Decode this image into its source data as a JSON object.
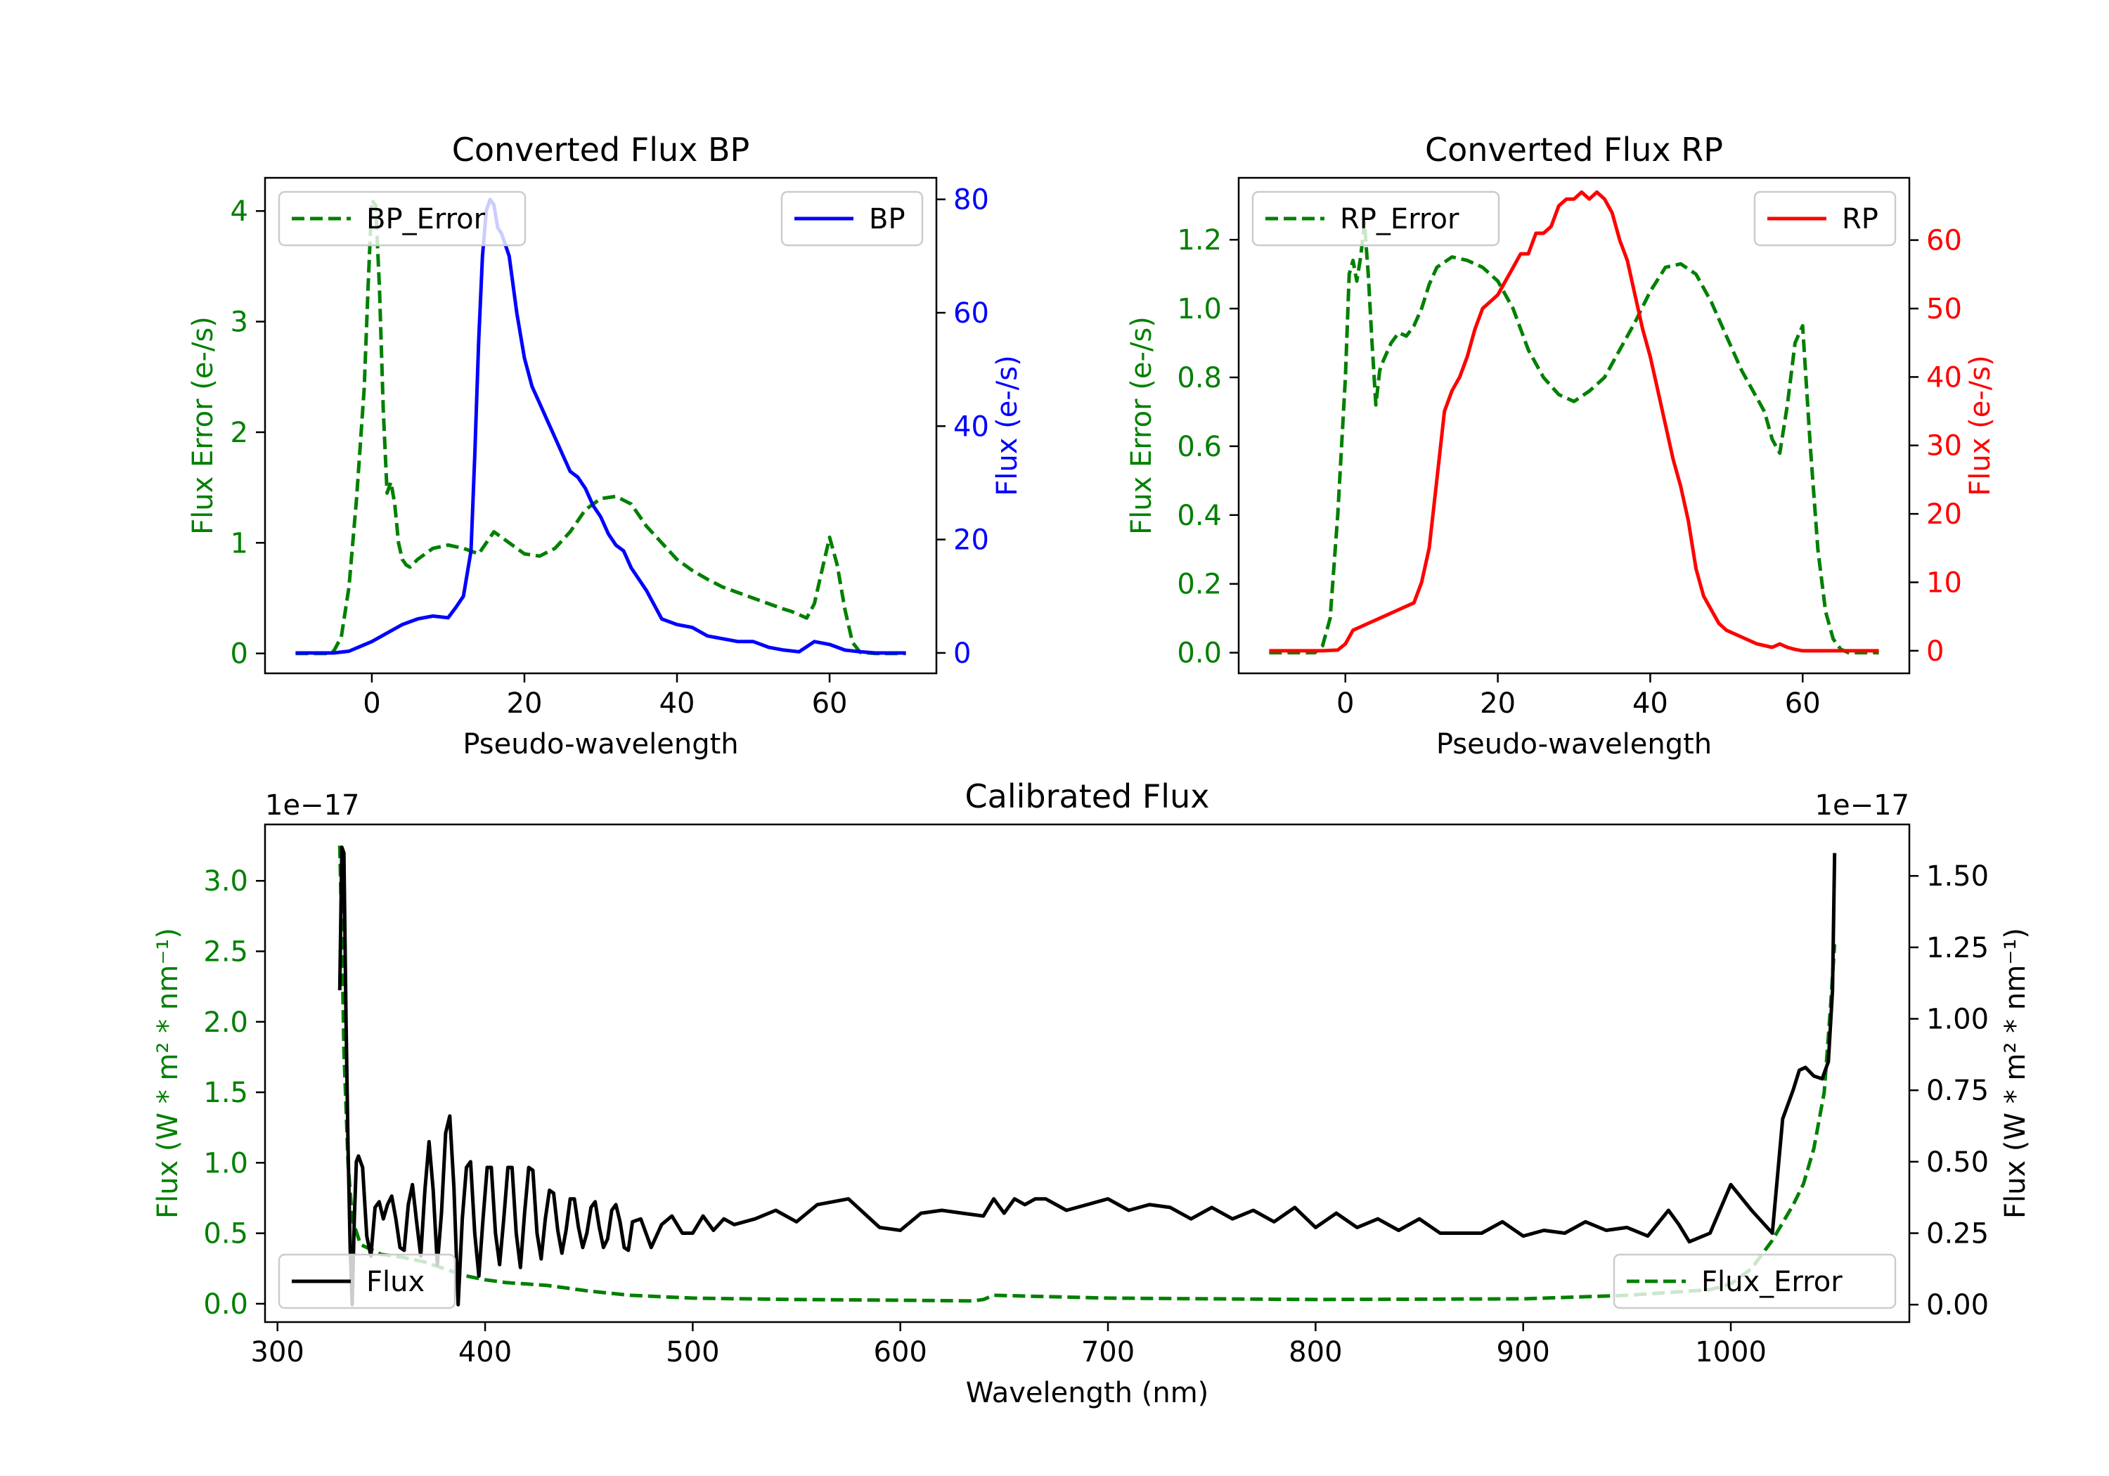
{
  "chart_data": [
    {
      "type": "line",
      "id": "bp",
      "title": "Converted Flux BP",
      "xlabel": "Pseudo-wavelength",
      "ylabel_left": "Flux Error (e-/s)",
      "ylabel_right": "Flux (e-/s)",
      "xlim": [
        -14,
        74
      ],
      "ylim_left": [
        -0.18,
        4.3
      ],
      "ylim_right": [
        -3.6,
        83.8
      ],
      "xticks": [
        0,
        20,
        40,
        60
      ],
      "xtick_labels": [
        "0",
        "20",
        "40",
        "60"
      ],
      "yticks_left": [
        0,
        1,
        2,
        3,
        4
      ],
      "ytick_labels_left": [
        "0",
        "1",
        "2",
        "3",
        "4"
      ],
      "yticks_right": [
        0,
        20,
        40,
        60,
        80
      ],
      "ytick_labels_right": [
        "0",
        "20",
        "40",
        "60",
        "80"
      ],
      "colors": {
        "error": "#008000",
        "flux": "#0000ff",
        "left_axis": "#008000",
        "right_axis": "#0000ff"
      },
      "legend_left": "BP_Error",
      "legend_right": "BP",
      "series": [
        {
          "name": "BP_Error",
          "axis": "left",
          "style": "dashed",
          "x": [
            -10,
            -6,
            -5,
            -4,
            -3,
            -2,
            -1,
            -0.5,
            0,
            0.5,
            1,
            1.5,
            2,
            2.5,
            3,
            3.5,
            4,
            4.5,
            5,
            6,
            8,
            10,
            12,
            14,
            16,
            18,
            20,
            22,
            24,
            26,
            28,
            30,
            32,
            34,
            36,
            38,
            40,
            42,
            44,
            46,
            48,
            50,
            52,
            54,
            55,
            56,
            57,
            58,
            59,
            60,
            61,
            62,
            63,
            64,
            66,
            70
          ],
          "y": [
            0,
            0,
            0.02,
            0.15,
            0.6,
            1.4,
            2.4,
            3.3,
            4.1,
            4.05,
            3.3,
            2.2,
            1.45,
            1.55,
            1.35,
            1.0,
            0.85,
            0.8,
            0.78,
            0.85,
            0.95,
            0.98,
            0.95,
            0.9,
            1.1,
            1.0,
            0.9,
            0.88,
            0.95,
            1.1,
            1.3,
            1.4,
            1.42,
            1.35,
            1.15,
            1.0,
            0.85,
            0.75,
            0.67,
            0.6,
            0.55,
            0.5,
            0.45,
            0.4,
            0.38,
            0.35,
            0.32,
            0.45,
            0.75,
            1.05,
            0.8,
            0.4,
            0.1,
            0.01,
            0,
            0
          ]
        },
        {
          "name": "BP",
          "axis": "right",
          "style": "solid",
          "x": [
            -10,
            -5,
            -3,
            0,
            2,
            4,
            6,
            8,
            10,
            11,
            12,
            13,
            13.5,
            14,
            14.5,
            15,
            15.5,
            16,
            16.5,
            17,
            18,
            19,
            20,
            21,
            22,
            23,
            24,
            25,
            26,
            27,
            28,
            29,
            30,
            31,
            32,
            33,
            34,
            35,
            36,
            38,
            40,
            42,
            44,
            46,
            48,
            50,
            52,
            54,
            56,
            58,
            60,
            62,
            64,
            66,
            70
          ],
          "y": [
            0,
            0,
            0.3,
            2,
            3.5,
            5,
            6,
            6.5,
            6.2,
            8,
            10,
            18,
            35,
            55,
            70,
            78,
            80,
            79,
            75,
            74,
            70,
            60,
            52,
            47,
            44,
            41,
            38,
            35,
            32,
            31,
            29,
            26,
            24,
            21,
            19,
            18,
            15,
            13,
            11,
            6,
            5,
            4.5,
            3,
            2.5,
            2,
            2,
            1,
            0.5,
            0.2,
            2,
            1.5,
            0.5,
            0.2,
            0,
            0
          ]
        }
      ]
    },
    {
      "type": "line",
      "id": "rp",
      "title": "Converted Flux RP",
      "xlabel": "Pseudo-wavelength",
      "ylabel_left": "Flux Error (e-/s)",
      "ylabel_right": "Flux (e-/s)",
      "xlim": [
        -14,
        74
      ],
      "ylim_left": [
        -0.06,
        1.38
      ],
      "ylim_right": [
        -3.3,
        69.1
      ],
      "xticks": [
        0,
        20,
        40,
        60
      ],
      "xtick_labels": [
        "0",
        "20",
        "40",
        "60"
      ],
      "yticks_left": [
        0,
        0.2,
        0.4,
        0.6,
        0.8,
        1.0,
        1.2
      ],
      "ytick_labels_left": [
        "0.0",
        "0.2",
        "0.4",
        "0.6",
        "0.8",
        "1.0",
        "1.2"
      ],
      "yticks_right": [
        0,
        10,
        20,
        30,
        40,
        50,
        60
      ],
      "ytick_labels_right": [
        "0",
        "10",
        "20",
        "30",
        "40",
        "50",
        "60"
      ],
      "colors": {
        "error": "#008000",
        "flux": "#ff0000",
        "left_axis": "#008000",
        "right_axis": "#ff0000"
      },
      "legend_left": "RP_Error",
      "legend_right": "RP",
      "series": [
        {
          "name": "RP_Error",
          "axis": "left",
          "style": "dashed",
          "x": [
            -10,
            -4,
            -3,
            -2,
            -1,
            0,
            0.5,
            1,
            1.5,
            2,
            2.5,
            3,
            3.5,
            4,
            4.5,
            5,
            6,
            7,
            8,
            9,
            10,
            11,
            12,
            14,
            16,
            18,
            20,
            22,
            24,
            26,
            28,
            30,
            32,
            34,
            36,
            38,
            40,
            42,
            44,
            46,
            48,
            50,
            52,
            53,
            54,
            55,
            56,
            57,
            58,
            59,
            60,
            61,
            62,
            63,
            64,
            65,
            66,
            70
          ],
          "y": [
            0,
            0,
            0.02,
            0.1,
            0.4,
            0.8,
            1.1,
            1.14,
            1.08,
            1.15,
            1.25,
            1.1,
            0.9,
            0.72,
            0.82,
            0.85,
            0.9,
            0.93,
            0.92,
            0.95,
            1.0,
            1.07,
            1.12,
            1.15,
            1.14,
            1.12,
            1.08,
            1.0,
            0.88,
            0.8,
            0.75,
            0.73,
            0.76,
            0.8,
            0.88,
            0.96,
            1.05,
            1.12,
            1.13,
            1.1,
            1.02,
            0.92,
            0.82,
            0.78,
            0.74,
            0.7,
            0.62,
            0.58,
            0.72,
            0.9,
            0.95,
            0.6,
            0.3,
            0.12,
            0.04,
            0.01,
            0,
            0
          ]
        },
        {
          "name": "RP",
          "axis": "right",
          "style": "solid",
          "x": [
            -10,
            -3,
            -1,
            0,
            1,
            3,
            5,
            7,
            9,
            10,
            11,
            12,
            13,
            14,
            15,
            16,
            17,
            18,
            19,
            20,
            21,
            22,
            23,
            24,
            25,
            26,
            27,
            28,
            29,
            30,
            31,
            32,
            33,
            34,
            35,
            36,
            37,
            38,
            39,
            40,
            41,
            42,
            43,
            44,
            45,
            46,
            47,
            48,
            49,
            50,
            52,
            54,
            56,
            57,
            58,
            59,
            60,
            62,
            66,
            70
          ],
          "y": [
            0,
            0,
            0.1,
            1,
            3,
            4,
            5,
            6,
            7,
            10,
            15,
            25,
            35,
            38,
            40,
            43,
            47,
            50,
            51,
            52,
            54,
            56,
            58,
            58,
            61,
            61,
            62,
            65,
            66,
            66,
            67,
            66,
            67,
            66,
            64,
            60,
            57,
            52,
            47,
            43,
            38,
            33,
            28,
            24,
            19,
            12,
            8,
            6,
            4,
            3,
            2,
            1,
            0.5,
            1,
            0.5,
            0.2,
            0,
            0,
            0,
            0
          ]
        }
      ]
    },
    {
      "type": "line",
      "id": "calibrated",
      "title": "Calibrated Flux",
      "xlabel": "Wavelength (nm)",
      "ylabel_left": "Flux (W * m² * nm⁻¹)",
      "ylabel_right": "Flux (W * m² * nm⁻¹)",
      "offset_left": "1e−17",
      "offset_right": "1e−17",
      "xlim": [
        294,
        1086
      ],
      "ylim_left": [
        -0.13,
        3.4
      ],
      "ylim_right": [
        -0.061,
        1.68
      ],
      "xticks": [
        300,
        400,
        500,
        600,
        700,
        800,
        900,
        1000
      ],
      "xtick_labels": [
        "300",
        "400",
        "500",
        "600",
        "700",
        "800",
        "900",
        "1000"
      ],
      "yticks_left": [
        0,
        0.5,
        1.0,
        1.5,
        2.0,
        2.5,
        3.0
      ],
      "ytick_labels_left": [
        "0.0",
        "0.5",
        "1.0",
        "1.5",
        "2.0",
        "2.5",
        "3.0"
      ],
      "yticks_right": [
        0,
        0.25,
        0.5,
        0.75,
        1.0,
        1.25,
        1.5
      ],
      "ytick_labels_right": [
        "0.00",
        "0.25",
        "0.50",
        "0.75",
        "1.00",
        "1.25",
        "1.50"
      ],
      "colors": {
        "error": "#008000",
        "flux": "#000000",
        "left_axis": "#008000",
        "right_axis": "#000000"
      },
      "legend_left": "Flux",
      "legend_right": "Flux_Error",
      "series": [
        {
          "name": "Flux_Error",
          "axis": "left",
          "style": "dashed",
          "x": [
            330,
            331,
            332,
            334,
            336,
            340,
            350,
            360,
            370,
            380,
            390,
            400,
            410,
            420,
            430,
            440,
            450,
            470,
            500,
            550,
            600,
            635,
            640,
            645,
            700,
            800,
            900,
            950,
            990,
            1000,
            1010,
            1020,
            1030,
            1035,
            1040,
            1045,
            1048,
            1050
          ],
          "y": [
            3.25,
            2.6,
            1.8,
            1.0,
            0.6,
            0.42,
            0.35,
            0.33,
            0.3,
            0.25,
            0.2,
            0.17,
            0.15,
            0.14,
            0.13,
            0.11,
            0.09,
            0.06,
            0.04,
            0.03,
            0.025,
            0.02,
            0.03,
            0.06,
            0.04,
            0.03,
            0.035,
            0.06,
            0.1,
            0.14,
            0.25,
            0.45,
            0.7,
            0.85,
            1.1,
            1.5,
            2.1,
            2.55
          ]
        },
        {
          "name": "Flux",
          "axis": "right",
          "style": "solid",
          "x": [
            330,
            331,
            332,
            333,
            334,
            335,
            336,
            337,
            338,
            339,
            341,
            343,
            345,
            347,
            349,
            351,
            353,
            355,
            357,
            359,
            361,
            363,
            365,
            367,
            369,
            371,
            373,
            375,
            377,
            379,
            381,
            383,
            385,
            387,
            389,
            391,
            393,
            395,
            397,
            399,
            401,
            403,
            405,
            407,
            409,
            411,
            413,
            415,
            417,
            419,
            421,
            423,
            425,
            427,
            429,
            431,
            433,
            435,
            437,
            439,
            441,
            443,
            445,
            447,
            449,
            451,
            453,
            455,
            457,
            459,
            461,
            463,
            465,
            467,
            469,
            471,
            475,
            480,
            485,
            490,
            495,
            500,
            505,
            510,
            515,
            520,
            530,
            540,
            550,
            560,
            575,
            590,
            600,
            610,
            620,
            630,
            640,
            645,
            650,
            655,
            660,
            665,
            670,
            680,
            690,
            700,
            710,
            720,
            730,
            740,
            750,
            760,
            770,
            780,
            790,
            800,
            810,
            820,
            830,
            840,
            850,
            860,
            870,
            880,
            890,
            900,
            910,
            920,
            930,
            940,
            950,
            960,
            970,
            975,
            980,
            990,
            1000,
            1010,
            1020,
            1025,
            1030,
            1033,
            1036,
            1040,
            1044,
            1047,
            1049,
            1050
          ],
          "y": [
            1.1,
            1.6,
            1.58,
            1.0,
            0.55,
            0.2,
            0.0,
            0.3,
            0.5,
            0.52,
            0.48,
            0.24,
            0.17,
            0.34,
            0.36,
            0.3,
            0.35,
            0.38,
            0.3,
            0.2,
            0.19,
            0.35,
            0.42,
            0.29,
            0.17,
            0.4,
            0.57,
            0.4,
            0.14,
            0.32,
            0.6,
            0.66,
            0.41,
            0.0,
            0.3,
            0.48,
            0.5,
            0.25,
            0.1,
            0.3,
            0.48,
            0.48,
            0.25,
            0.14,
            0.3,
            0.48,
            0.48,
            0.25,
            0.13,
            0.32,
            0.48,
            0.47,
            0.25,
            0.16,
            0.3,
            0.4,
            0.39,
            0.26,
            0.18,
            0.26,
            0.37,
            0.37,
            0.27,
            0.2,
            0.25,
            0.34,
            0.36,
            0.27,
            0.2,
            0.23,
            0.33,
            0.35,
            0.29,
            0.2,
            0.19,
            0.29,
            0.3,
            0.2,
            0.28,
            0.31,
            0.25,
            0.25,
            0.31,
            0.26,
            0.3,
            0.28,
            0.3,
            0.33,
            0.29,
            0.35,
            0.37,
            0.27,
            0.26,
            0.32,
            0.33,
            0.32,
            0.31,
            0.37,
            0.32,
            0.37,
            0.35,
            0.37,
            0.37,
            0.33,
            0.35,
            0.37,
            0.33,
            0.35,
            0.34,
            0.3,
            0.34,
            0.3,
            0.33,
            0.29,
            0.34,
            0.27,
            0.32,
            0.27,
            0.3,
            0.26,
            0.3,
            0.25,
            0.25,
            0.25,
            0.29,
            0.24,
            0.26,
            0.25,
            0.29,
            0.26,
            0.27,
            0.24,
            0.33,
            0.28,
            0.22,
            0.25,
            0.42,
            0.33,
            0.25,
            0.65,
            0.75,
            0.82,
            0.83,
            0.8,
            0.79,
            0.85,
            1.1,
            1.58
          ]
        }
      ]
    }
  ]
}
